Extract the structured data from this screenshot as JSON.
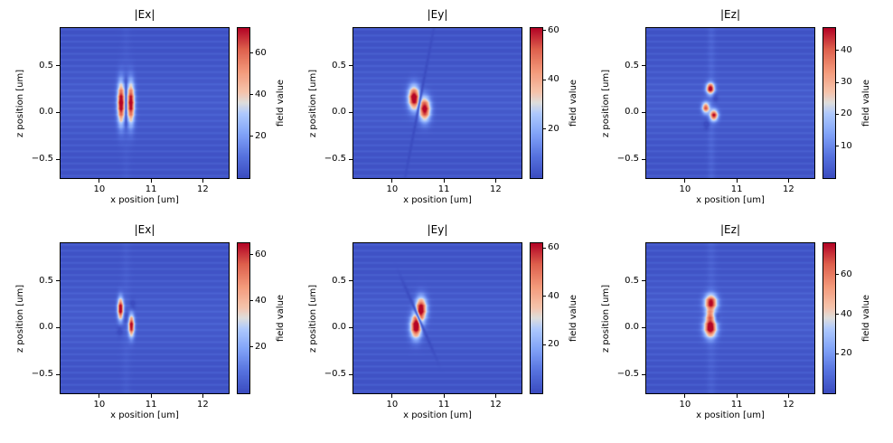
{
  "figure": {
    "background": "#ffffff",
    "cmap_min_color": "#3b4cc0",
    "cmap_max_color": "#b40426"
  },
  "chart_data": [
    {
      "type": "heatmap",
      "title": "|Ex|",
      "xlabel": "x position [um]",
      "ylabel": "z position [um]",
      "cmap": "coolwarm",
      "xlim": [
        9.25,
        12.5
      ],
      "ylim": [
        -0.7,
        0.9
      ],
      "xticks": [
        {
          "value": 10,
          "label": "10"
        },
        {
          "value": 11,
          "label": "11"
        },
        {
          "value": 12,
          "label": "12"
        }
      ],
      "yticks": [
        {
          "value": 0.5,
          "label": "0.5"
        },
        {
          "value": 0.0,
          "label": "0.0"
        },
        {
          "value": -0.5,
          "label": "−0.5"
        }
      ],
      "colorbar": {
        "label": "field value",
        "vmin": 0,
        "vmax": 72,
        "ticks": [
          {
            "value": 20,
            "label": "20"
          },
          {
            "value": 40,
            "label": "40"
          },
          {
            "value": 60,
            "label": "60"
          }
        ]
      },
      "field": {
        "base": 0.02,
        "stripe_amp": 0.05,
        "stripe_period": 0.065,
        "stripe_phase": 0.105,
        "hband": {
          "z": 0.1,
          "sz": 0.28,
          "amp": 0.03
        },
        "vband": {
          "x": 10.52,
          "sx": 0.06,
          "amp": 0.02
        },
        "blobs": [
          {
            "x": 10.42,
            "z": 0.1,
            "sx": 0.05,
            "sz": 0.15,
            "amp": 1.05
          },
          {
            "x": 10.61,
            "z": 0.1,
            "sx": 0.05,
            "sz": 0.15,
            "amp": 1.0
          },
          {
            "x": 10.5,
            "z": 0.33,
            "sx": 0.04,
            "sz": 0.03,
            "amp": -0.08
          },
          {
            "x": 10.52,
            "z": -0.11,
            "sx": 0.04,
            "sz": 0.03,
            "amp": -0.08
          }
        ],
        "nodal_lines": [
          {
            "x": 10.515,
            "z": 0.1,
            "dx": 0.0,
            "dz": 1.0,
            "width": 0.014,
            "length": 0.55,
            "strength": 0.85
          }
        ]
      }
    },
    {
      "type": "heatmap",
      "title": "|Ey|",
      "xlabel": "x position [um]",
      "ylabel": "z position [um]",
      "cmap": "coolwarm",
      "xlim": [
        9.25,
        12.5
      ],
      "ylim": [
        -0.7,
        0.9
      ],
      "xticks": [
        {
          "value": 10,
          "label": "10"
        },
        {
          "value": 11,
          "label": "11"
        },
        {
          "value": 12,
          "label": "12"
        }
      ],
      "yticks": [
        {
          "value": 0.5,
          "label": "0.5"
        },
        {
          "value": 0.0,
          "label": "0.0"
        },
        {
          "value": -0.5,
          "label": "−0.5"
        }
      ],
      "colorbar": {
        "label": "field value",
        "vmin": 0,
        "vmax": 61,
        "ticks": [
          {
            "value": 20,
            "label": "20"
          },
          {
            "value": 40,
            "label": "40"
          },
          {
            "value": 60,
            "label": "60"
          }
        ]
      },
      "field": {
        "base": 0.02,
        "stripe_amp": 0.05,
        "stripe_period": 0.065,
        "stripe_phase": 0.105,
        "hband": {
          "z": 0.1,
          "sz": 0.28,
          "amp": 0.03
        },
        "vband": {
          "x": 10.52,
          "sx": 0.06,
          "amp": 0.0
        },
        "blobs": [
          {
            "x": 10.42,
            "z": 0.155,
            "sx": 0.075,
            "sz": 0.085,
            "amp": 1.05
          },
          {
            "x": 10.63,
            "z": 0.035,
            "sx": 0.075,
            "sz": 0.085,
            "amp": 1.0
          }
        ],
        "nodal_lines": [
          {
            "x": 10.525,
            "z": 0.095,
            "dx": 0.33,
            "dz": 0.944,
            "width": 0.02,
            "length": 1.9,
            "strength": 0.9
          }
        ]
      }
    },
    {
      "type": "heatmap",
      "title": "|Ez|",
      "xlabel": "x position [um]",
      "ylabel": "z position [um]",
      "cmap": "coolwarm",
      "xlim": [
        9.25,
        12.5
      ],
      "ylim": [
        -0.7,
        0.9
      ],
      "xticks": [
        {
          "value": 10,
          "label": "10"
        },
        {
          "value": 11,
          "label": "11"
        },
        {
          "value": 12,
          "label": "12"
        }
      ],
      "yticks": [
        {
          "value": 0.5,
          "label": "0.5"
        },
        {
          "value": 0.0,
          "label": "0.0"
        },
        {
          "value": -0.5,
          "label": "−0.5"
        }
      ],
      "colorbar": {
        "label": "field value",
        "vmin": 0,
        "vmax": 47,
        "ticks": [
          {
            "value": 10,
            "label": "10"
          },
          {
            "value": 20,
            "label": "20"
          },
          {
            "value": 30,
            "label": "30"
          },
          {
            "value": 40,
            "label": "40"
          }
        ]
      },
      "field": {
        "base": 0.02,
        "stripe_amp": 0.05,
        "stripe_period": 0.065,
        "stripe_phase": 0.105,
        "hband": {
          "z": 0.1,
          "sz": 0.28,
          "amp": 0.035
        },
        "vband": {
          "x": 10.51,
          "sx": 0.05,
          "amp": 0.05
        },
        "blobs": [
          {
            "x": 10.49,
            "z": 0.255,
            "sx": 0.055,
            "sz": 0.04,
            "amp": 1.0
          },
          {
            "x": 10.4,
            "z": 0.05,
            "sx": 0.05,
            "sz": 0.04,
            "amp": 0.8
          },
          {
            "x": 10.56,
            "z": -0.03,
            "sx": 0.055,
            "sz": 0.04,
            "amp": 0.9
          },
          {
            "x": 10.58,
            "z": 0.16,
            "sx": 0.04,
            "sz": 0.035,
            "amp": -0.1
          },
          {
            "x": 10.42,
            "z": -0.13,
            "sx": 0.04,
            "sz": 0.035,
            "amp": -0.1
          }
        ],
        "nodal_lines": []
      }
    },
    {
      "type": "heatmap",
      "title": "|Ex|",
      "xlabel": "x position [um]",
      "ylabel": "z position [um]",
      "cmap": "coolwarm",
      "xlim": [
        9.25,
        12.5
      ],
      "ylim": [
        -0.7,
        0.9
      ],
      "xticks": [
        {
          "value": 10,
          "label": "10"
        },
        {
          "value": 11,
          "label": "11"
        },
        {
          "value": 12,
          "label": "12"
        }
      ],
      "yticks": [
        {
          "value": 0.5,
          "label": "0.5"
        },
        {
          "value": 0.0,
          "label": "0.0"
        },
        {
          "value": -0.5,
          "label": "−0.5"
        }
      ],
      "colorbar": {
        "label": "field value",
        "vmin": 0,
        "vmax": 65,
        "ticks": [
          {
            "value": 20,
            "label": "20"
          },
          {
            "value": 40,
            "label": "40"
          },
          {
            "value": 60,
            "label": "60"
          }
        ]
      },
      "field": {
        "base": 0.02,
        "stripe_amp": 0.05,
        "stripe_period": 0.065,
        "stripe_phase": 0.105,
        "hband": {
          "z": 0.1,
          "sz": 0.28,
          "amp": 0.03
        },
        "vband": {
          "x": 10.52,
          "sx": 0.06,
          "amp": 0.025
        },
        "blobs": [
          {
            "x": 10.41,
            "z": 0.2,
            "sx": 0.04,
            "sz": 0.08,
            "amp": 1.05
          },
          {
            "x": 10.62,
            "z": 0.02,
            "sx": 0.04,
            "sz": 0.08,
            "amp": 1.0
          },
          {
            "x": 10.52,
            "z": 0.11,
            "sx": 0.05,
            "sz": 0.05,
            "amp": -0.1
          },
          {
            "x": 10.4,
            "z": -0.03,
            "sx": 0.04,
            "sz": 0.04,
            "amp": -0.09
          },
          {
            "x": 10.64,
            "z": 0.24,
            "sx": 0.04,
            "sz": 0.04,
            "amp": -0.09
          }
        ],
        "nodal_lines": []
      }
    },
    {
      "type": "heatmap",
      "title": "|Ey|",
      "xlabel": "x position [um]",
      "ylabel": "z position [um]",
      "cmap": "coolwarm",
      "xlim": [
        9.25,
        12.5
      ],
      "ylim": [
        -0.7,
        0.9
      ],
      "xticks": [
        {
          "value": 10,
          "label": "10"
        },
        {
          "value": 11,
          "label": "11"
        },
        {
          "value": 12,
          "label": "12"
        }
      ],
      "yticks": [
        {
          "value": 0.5,
          "label": "0.5"
        },
        {
          "value": 0.0,
          "label": "0.0"
        },
        {
          "value": -0.5,
          "label": "−0.5"
        }
      ],
      "colorbar": {
        "label": "field value",
        "vmin": 0,
        "vmax": 62,
        "ticks": [
          {
            "value": 20,
            "label": "20"
          },
          {
            "value": 40,
            "label": "40"
          },
          {
            "value": 60,
            "label": "60"
          }
        ]
      },
      "field": {
        "base": 0.02,
        "stripe_amp": 0.05,
        "stripe_period": 0.065,
        "stripe_phase": 0.105,
        "hband": {
          "z": 0.1,
          "sz": 0.28,
          "amp": 0.03
        },
        "vband": {
          "x": 10.52,
          "sx": 0.06,
          "amp": 0.0
        },
        "blobs": [
          {
            "x": 10.56,
            "z": 0.2,
            "sx": 0.075,
            "sz": 0.085,
            "amp": 1.0
          },
          {
            "x": 10.46,
            "z": 0.01,
            "sx": 0.075,
            "sz": 0.085,
            "amp": 1.05
          }
        ],
        "nodal_lines": [
          {
            "x": 10.51,
            "z": 0.105,
            "dx": 0.62,
            "dz": -0.785,
            "width": 0.02,
            "length": 1.2,
            "strength": 0.9
          }
        ]
      }
    },
    {
      "type": "heatmap",
      "title": "|Ez|",
      "xlabel": "x position [um]",
      "ylabel": "z position [um]",
      "cmap": "coolwarm",
      "xlim": [
        9.25,
        12.5
      ],
      "ylim": [
        -0.7,
        0.9
      ],
      "xticks": [
        {
          "value": 10,
          "label": "10"
        },
        {
          "value": 11,
          "label": "11"
        },
        {
          "value": 12,
          "label": "12"
        }
      ],
      "yticks": [
        {
          "value": 0.5,
          "label": "0.5"
        },
        {
          "value": 0.0,
          "label": "0.0"
        },
        {
          "value": -0.5,
          "label": "−0.5"
        }
      ],
      "colorbar": {
        "label": "field value",
        "vmin": 0,
        "vmax": 76,
        "ticks": [
          {
            "value": 20,
            "label": "20"
          },
          {
            "value": 40,
            "label": "40"
          },
          {
            "value": 60,
            "label": "60"
          }
        ]
      },
      "field": {
        "base": 0.02,
        "stripe_amp": 0.05,
        "stripe_period": 0.065,
        "stripe_phase": 0.105,
        "hband": {
          "z": 0.12,
          "sz": 0.28,
          "amp": 0.035
        },
        "vband": {
          "x": 10.51,
          "sx": 0.06,
          "amp": 0.04
        },
        "blobs": [
          {
            "x": 10.5,
            "z": 0.265,
            "sx": 0.085,
            "sz": 0.06,
            "amp": 0.95
          },
          {
            "x": 10.49,
            "z": 0.0,
            "sx": 0.085,
            "sz": 0.07,
            "amp": 1.05
          },
          {
            "x": 10.48,
            "z": 0.13,
            "sx": 0.06,
            "sz": 0.045,
            "amp": 0.45
          },
          {
            "x": 10.62,
            "z": 0.1,
            "sx": 0.035,
            "sz": 0.035,
            "amp": -0.12
          }
        ],
        "nodal_lines": []
      }
    }
  ]
}
